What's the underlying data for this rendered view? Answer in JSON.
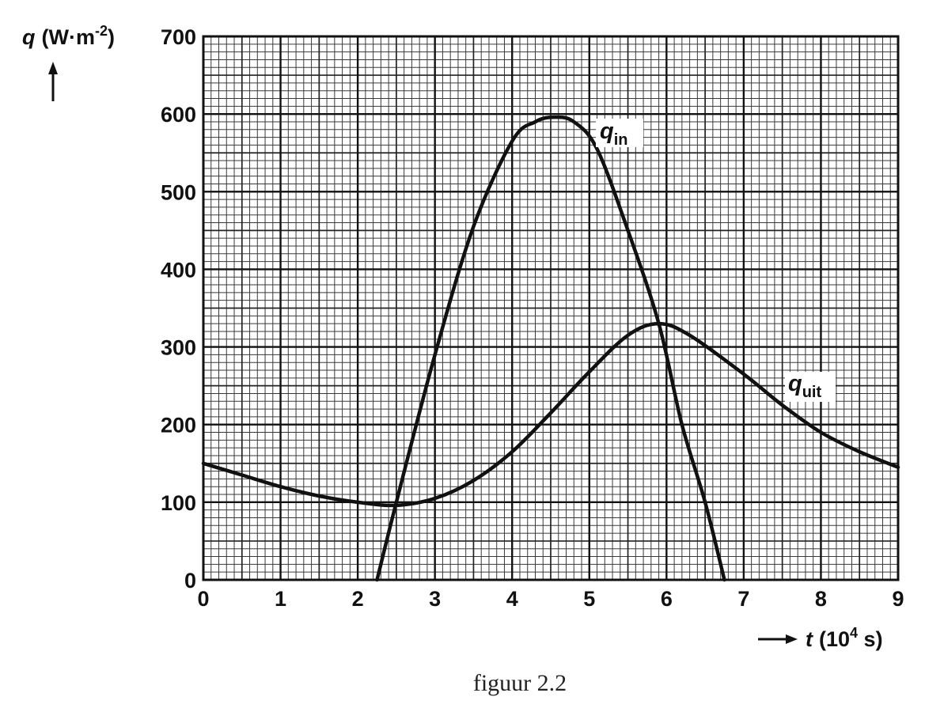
{
  "chart_data": {
    "type": "line",
    "caption": "figuur 2.2",
    "ylabel": {
      "symbol": "q",
      "unit_base": "(W·m",
      "unit_exp": "-2",
      "unit_close": ")"
    },
    "xlabel": {
      "symbol": "t",
      "unit_base": "(10",
      "unit_exp": "4",
      "unit_close": " s)"
    },
    "xlim": [
      0,
      9
    ],
    "ylim": [
      0,
      700
    ],
    "x_ticks": [
      "0",
      "1",
      "2",
      "3",
      "4",
      "5",
      "6",
      "7",
      "8",
      "9"
    ],
    "y_ticks": [
      "0",
      "100",
      "200",
      "300",
      "400",
      "500",
      "600",
      "700"
    ],
    "grid": true,
    "series": [
      {
        "name": "q_in",
        "label_base": "q",
        "label_sub": "in",
        "color": "#111111",
        "points": [
          [
            2.25,
            0
          ],
          [
            2.5,
            100
          ],
          [
            3.0,
            290
          ],
          [
            3.5,
            455
          ],
          [
            4.0,
            565
          ],
          [
            4.3,
            590
          ],
          [
            4.55,
            596
          ],
          [
            4.8,
            590
          ],
          [
            5.1,
            555
          ],
          [
            5.5,
            450
          ],
          [
            5.9,
            330
          ],
          [
            6.2,
            200
          ],
          [
            6.5,
            100
          ],
          [
            6.75,
            0
          ]
        ]
      },
      {
        "name": "q_uit",
        "label_base": "q",
        "label_sub": "uit",
        "color": "#111111",
        "points": [
          [
            0,
            150
          ],
          [
            0.5,
            135
          ],
          [
            1.0,
            120
          ],
          [
            1.5,
            108
          ],
          [
            2.0,
            100
          ],
          [
            2.5,
            96
          ],
          [
            3.0,
            105
          ],
          [
            3.5,
            128
          ],
          [
            4.0,
            165
          ],
          [
            4.5,
            215
          ],
          [
            5.0,
            268
          ],
          [
            5.5,
            315
          ],
          [
            5.9,
            330
          ],
          [
            6.3,
            315
          ],
          [
            7.0,
            265
          ],
          [
            7.5,
            225
          ],
          [
            8.0,
            190
          ],
          [
            8.5,
            165
          ],
          [
            9.0,
            145
          ]
        ]
      }
    ]
  }
}
